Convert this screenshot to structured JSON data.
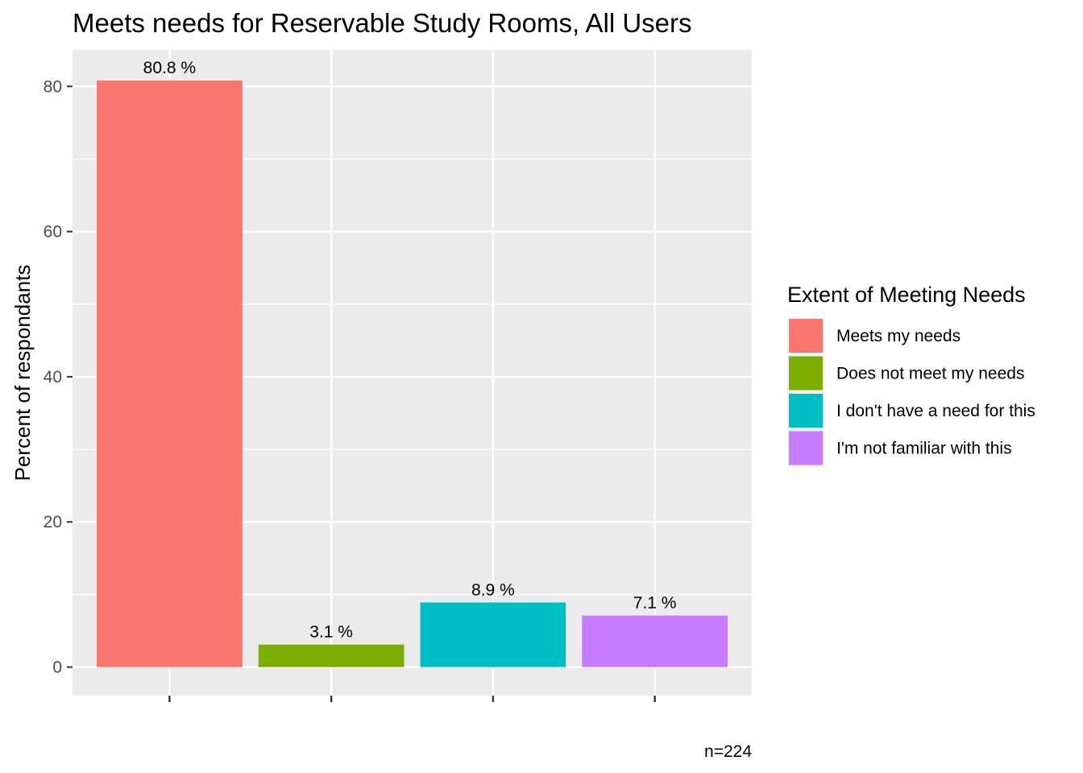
{
  "chart_data": {
    "type": "bar",
    "title": "Meets needs for Reservable Study Rooms, All Users",
    "xlabel": "",
    "ylabel": "Percent of respondants",
    "ylim": [
      0,
      85
    ],
    "yticks": [
      0,
      20,
      40,
      60,
      80
    ],
    "grid": true,
    "categories": [
      "Meets my needs",
      "Does not meet my needs",
      "I don't have a need for this",
      "I'm not familiar with this"
    ],
    "values": [
      80.8,
      3.1,
      8.9,
      7.1
    ],
    "data_labels": [
      "80.8 %",
      "3.1 %",
      "8.9 %",
      "7.1 %"
    ],
    "colors": [
      "#F8766D",
      "#7CAE00",
      "#00BFC4",
      "#C77CFF"
    ],
    "legend": {
      "title": "Extent of Meeting Needs",
      "placement": "right",
      "entries": [
        "Meets my needs",
        "Does not meet my needs",
        "I don't have a need for this",
        "I'm not familiar with this"
      ]
    },
    "caption": "n=224"
  },
  "theme": {
    "panel_background": "#EBEBEB",
    "grid_color": "#FFFFFF",
    "tick_color": "#333333"
  }
}
